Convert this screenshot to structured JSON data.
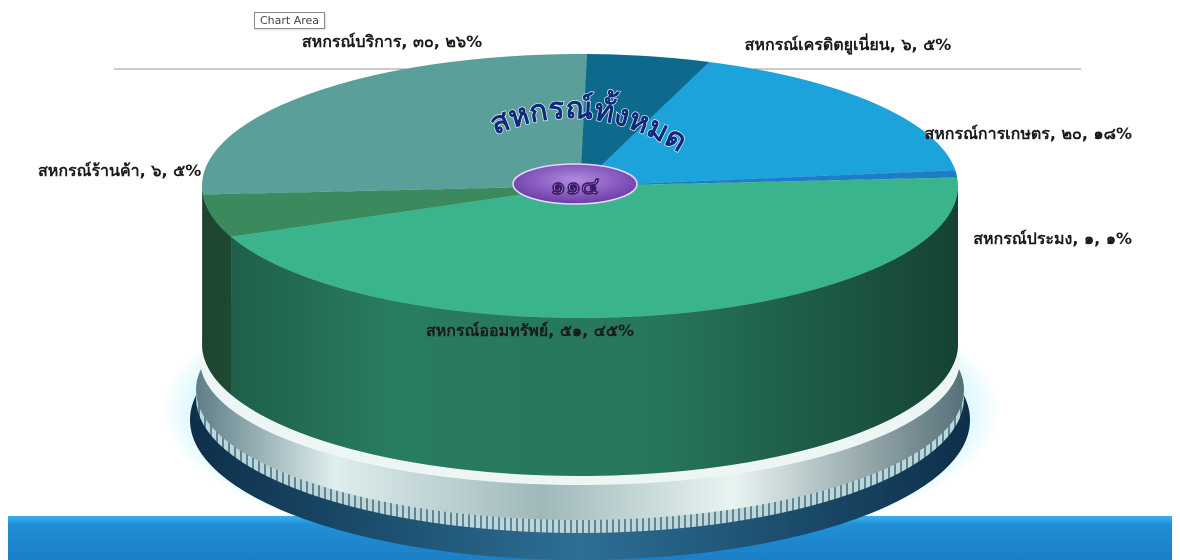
{
  "tooltip": "Chart Area",
  "chart_data": {
    "type": "pie",
    "center_title": "สหกรณ์ทั้งหมด",
    "center_total": "๑๑๔",
    "slices": [
      {
        "label": "สหกรณ์การเกษตร, ๒๐, ๑๘%",
        "name": "สหกรณ์การเกษตร",
        "value": 20,
        "percent": 18,
        "color": "#1da3dc"
      },
      {
        "label": "สหกรณ์ประมง, ๑, ๑%",
        "name": "สหกรณ์ประมง",
        "value": 1,
        "percent": 1,
        "color": "#1f7cc8"
      },
      {
        "label": "สหกรณ์ออมทรัพย์, ๕๑, ๔๕%",
        "name": "สหกรณ์ออมทรัพย์",
        "value": 51,
        "percent": 45,
        "color": "#3ab48c"
      },
      {
        "label": "สหกรณ์ร้านค้า, ๖, ๕%",
        "name": "สหกรณ์ร้านค้า",
        "value": 6,
        "percent": 5,
        "color": "#3a8a5e"
      },
      {
        "label": "สหกรณ์บริการ, ๓๐, ๒๖%",
        "name": "สหกรณ์บริการ",
        "value": 30,
        "percent": 26,
        "color": "#5a9f9a"
      },
      {
        "label": "สหกรณ์เครดิตยูเนี่ยน, ๖, ๕%",
        "name": "สหกรณ์เครดิตยูเนี่ยน",
        "value": 6,
        "percent": 5,
        "color": "#0e6a8c"
      }
    ]
  }
}
